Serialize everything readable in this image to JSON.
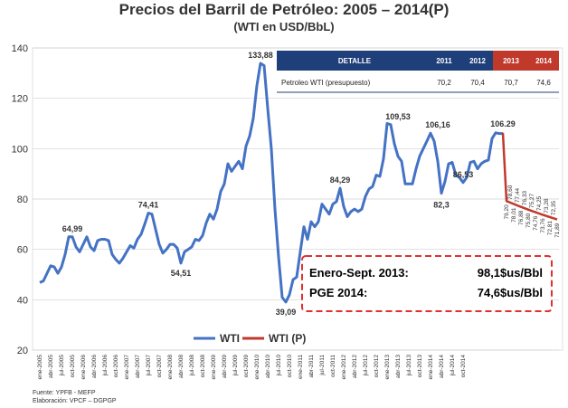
{
  "chart_data": {
    "type": "line",
    "title": "Precios del Barril de Petróleo: 2005 – 2014(P)",
    "subtitle": "(WTI en USD/BbL)",
    "ylim": [
      20,
      140
    ],
    "yticks": [
      20,
      40,
      60,
      80,
      100,
      120,
      140
    ],
    "grid": true,
    "legend_position": "bottom-center",
    "x_labels": [
      "ene-2005",
      "abr-2005",
      "jul-2005",
      "oct-2005",
      "ene-2006",
      "abr-2006",
      "jul-2006",
      "oct-2006",
      "ene-2007",
      "abr-2007",
      "jul-2007",
      "oct-2007",
      "ene-2008",
      "abr-2008",
      "jul-2008",
      "oct-2008",
      "ene-2009",
      "abr-2009",
      "jul-2009",
      "oct-2009",
      "ene-2010",
      "abr-2010",
      "jul-2010",
      "oct-2010",
      "ene-2011",
      "abr-2011",
      "jul-2011",
      "oct-2011",
      "ene-2012",
      "abr-2012",
      "jul-2012",
      "oct-2012",
      "ene-2013",
      "abr-2013",
      "jul-2013",
      "oct-2013",
      "ene-2014",
      "abr-2014",
      "jul-2014",
      "oct-2014"
    ],
    "series": [
      {
        "name": "WTI",
        "color": "#4472c4",
        "values": [
          46.8,
          47.5,
          50.5,
          53.5,
          53.0,
          50.5,
          53.0,
          58.0,
          65.0,
          64.99,
          61.0,
          59.0,
          62.0,
          65.0,
          61.0,
          59.5,
          63.5,
          64.0,
          64.0,
          63.5,
          58.0,
          56.0,
          54.51,
          56.5,
          59.0,
          61.5,
          60.5,
          64.0,
          66.0,
          70.0,
          74.41,
          74.0,
          68.0,
          62.0,
          58.5,
          60.0,
          62.0,
          62.0,
          60.5,
          54.51,
          59.0,
          60.0,
          61.0,
          64.0,
          63.5,
          65.5,
          70.5,
          74.0,
          72.0,
          76.0,
          83.0,
          86.0,
          94.0,
          91.0,
          93.0,
          95.0,
          92.0,
          101.0,
          105.0,
          112.0,
          125.0,
          133.88,
          133.0,
          116.0,
          100.0,
          76.0,
          57.0,
          41.0,
          39.09,
          42.0,
          48.0,
          49.0,
          59.0,
          69.0,
          64.0,
          71.0,
          69.0,
          71.0,
          78.0,
          76.0,
          74.0,
          78.0,
          79.0,
          84.29,
          77.0,
          73.0,
          75.0,
          76.0,
          75.0,
          76.0,
          81.0,
          84.0,
          85.0,
          89.5,
          89.0,
          96.0,
          110.0,
          109.53,
          102.0,
          97.0,
          95.0,
          86.0,
          86.0,
          86.0,
          92.0,
          97.0,
          100.0,
          103.0,
          106.16,
          103.0,
          95.0,
          82.3,
          87.0,
          94.0,
          94.5,
          89.5,
          88.5,
          86.53,
          88.5,
          94.5,
          95.0,
          92.0,
          94.0,
          95.0,
          95.5,
          104.0,
          106.29,
          106.0,
          106.0
        ]
      },
      {
        "name": "WTI (P)",
        "color": "#c0392b",
        "values": [
          106.29,
          79.2,
          78.6,
          78.01,
          77.44,
          76.88,
          76.33,
          75.8,
          75.27,
          74.76,
          74.25,
          73.76,
          73.28,
          72.81,
          72.35,
          71.89
        ]
      }
    ],
    "data_labels": [
      "133,88",
      "109,53",
      "106,16",
      "106.29",
      "84,29",
      "74,41",
      "64,99",
      "54,51",
      "39,09",
      "82,3",
      "86,53"
    ],
    "projection_labels_top": [
      "78,60",
      "77,44",
      "76,33",
      "75,27",
      "74,25",
      "73,28",
      "72,35"
    ],
    "projection_labels_bottom": [
      "79,20",
      "78,01",
      "76,88",
      "75,80",
      "74,76",
      "73,76",
      "72,81",
      "71,89"
    ],
    "table": {
      "headers": [
        "DETALLE",
        "2011",
        "2012",
        "2013",
        "2014"
      ],
      "row_label": "Petroleo WTI (presupuesto)",
      "row_values": [
        "70,2",
        "70,4",
        "70,7",
        "74,6"
      ]
    },
    "callout": {
      "line1_label": "Enero-Sept. 2013:",
      "line1_value": "98,1$us/Bbl",
      "line2_label": "PGE 2014:",
      "line2_value": "74,6$us/Bbl"
    },
    "footer_lines": [
      "Fuente: YPFB - MEFP",
      "Elaboración: VPCF – DGPGP"
    ]
  }
}
